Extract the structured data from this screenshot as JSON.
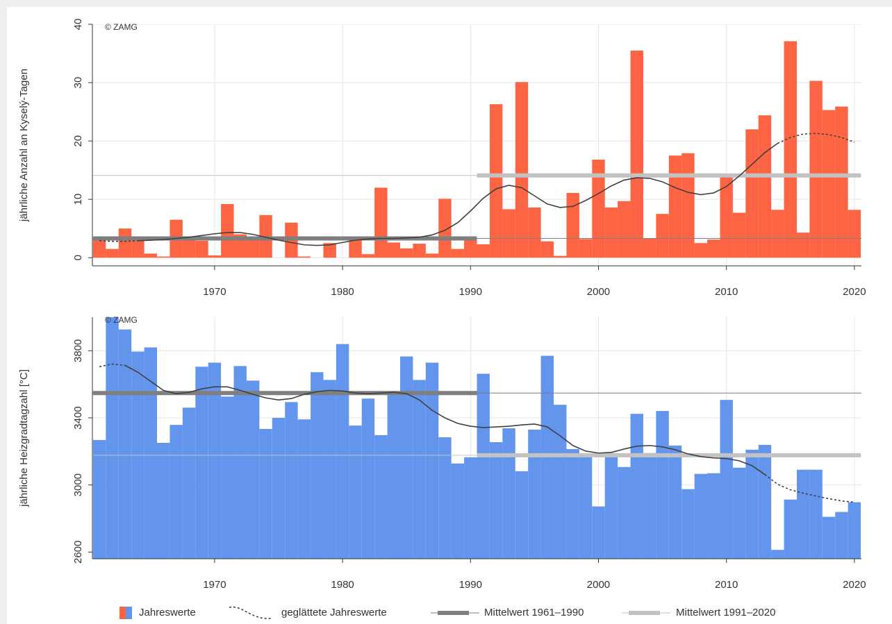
{
  "chart_data": [
    {
      "type": "bar",
      "annotation": "© ZAMG",
      "y_label": "jährliche Anzahl an Kyselý-Tagen",
      "x": [
        1961,
        1962,
        1963,
        1964,
        1965,
        1966,
        1967,
        1968,
        1969,
        1970,
        1971,
        1972,
        1973,
        1974,
        1975,
        1976,
        1977,
        1978,
        1979,
        1980,
        1981,
        1982,
        1983,
        1984,
        1985,
        1986,
        1987,
        1988,
        1989,
        1990,
        1991,
        1992,
        1993,
        1994,
        1995,
        1996,
        1997,
        1998,
        1999,
        2000,
        2001,
        2002,
        2003,
        2004,
        2005,
        2006,
        2007,
        2008,
        2009,
        2010,
        2011,
        2012,
        2013,
        2014,
        2015,
        2016,
        2017,
        2018,
        2019,
        2020
      ],
      "xlim": [
        1960.45,
        2020.55
      ],
      "xticks": [
        1970,
        1980,
        1990,
        2000,
        2010,
        2020
      ],
      "ylim": [
        -1.4,
        40
      ],
      "yticks": [
        0,
        10,
        20,
        30,
        40
      ],
      "grid": true,
      "series": [
        {
          "name": "Jahreswerte",
          "type": "bar",
          "color": "#fc6443",
          "values": [
            3.3,
            1.5,
            5,
            3,
            0.7,
            0.2,
            6.5,
            3.3,
            2.9,
            0.4,
            9.2,
            4,
            3.3,
            7.3,
            0,
            6,
            0.2,
            0,
            2.5,
            0,
            3,
            0.6,
            12,
            2.6,
            1.6,
            2.4,
            0.7,
            10.1,
            1.5,
            3.1,
            2.3,
            26.3,
            8.3,
            30.1,
            8.6,
            2.8,
            0.3,
            11.1,
            3.2,
            16.8,
            8.6,
            9.7,
            35.5,
            3.3,
            7.5,
            17.5,
            17.9,
            2.5,
            3.1,
            13.8,
            7.7,
            22,
            24.4,
            8.2,
            37.1,
            4.3,
            30.3,
            25.3,
            25.9,
            8.2
          ]
        },
        {
          "name": "geglättete Jahreswerte",
          "type": "line",
          "color": "#404040",
          "values": [
            2.9,
            2.8,
            2.8,
            2.9,
            3,
            3.1,
            3.3,
            3.5,
            3.8,
            4.1,
            4.3,
            4.3,
            4,
            3.5,
            3,
            2.6,
            2.2,
            2.1,
            2.2,
            2.6,
            3,
            3.2,
            3.3,
            3.3,
            3.4,
            3.5,
            3.9,
            4.7,
            6,
            8,
            10.2,
            11.8,
            12.4,
            12,
            10.6,
            9.2,
            8.6,
            8.8,
            9.8,
            11,
            12.3,
            13.3,
            13.7,
            13.6,
            13,
            12,
            11.2,
            10.8,
            11.1,
            12.2,
            14,
            16,
            18,
            19.6,
            20.6,
            21.2,
            21.3,
            21.1,
            20.6,
            19.8
          ]
        },
        {
          "name": "Mittelwert 1961–1990",
          "type": "hline",
          "color": "#7f7f7f",
          "value": 3.3,
          "xrange": [
            1961,
            1990
          ]
        },
        {
          "name": "Mittelwert 1991–2020",
          "type": "hline",
          "color": "#c2c2c2",
          "value": 14.1,
          "xrange": [
            1991,
            2020
          ]
        }
      ]
    },
    {
      "type": "bar",
      "annotation": "© ZAMG",
      "y_label": "jährliche Heizgradtagzahl [°C]",
      "x": [
        1961,
        1962,
        1963,
        1964,
        1965,
        1966,
        1967,
        1968,
        1969,
        1970,
        1971,
        1972,
        1973,
        1974,
        1975,
        1976,
        1977,
        1978,
        1979,
        1980,
        1981,
        1982,
        1983,
        1984,
        1985,
        1986,
        1987,
        1988,
        1989,
        1990,
        1991,
        1992,
        1993,
        1994,
        1995,
        1996,
        1997,
        1998,
        1999,
        2000,
        2001,
        2002,
        2003,
        2004,
        2005,
        2006,
        2007,
        2008,
        2009,
        2010,
        2011,
        2012,
        2013,
        2014,
        2015,
        2016,
        2017,
        2018,
        2019,
        2020
      ],
      "xlim": [
        1960.45,
        2020.55
      ],
      "xticks": [
        1970,
        1980,
        1990,
        2000,
        2010,
        2020
      ],
      "ylim": [
        2560,
        4000
      ],
      "yticks": [
        2600,
        3000,
        3400,
        3800
      ],
      "grid": true,
      "series": [
        {
          "type": "bar",
          "color": "#6495ed",
          "values": [
            3268,
            4000,
            3927,
            3795,
            3820,
            3251,
            3358,
            3461,
            3705,
            3729,
            3527,
            3709,
            3622,
            3334,
            3400,
            3494,
            3391,
            3672,
            3626,
            3840,
            3354,
            3515,
            3297,
            3560,
            3766,
            3626,
            3729,
            3284,
            3128,
            3165,
            3663,
            3255,
            3338,
            3082,
            3330,
            3770,
            3478,
            3214,
            3173,
            2872,
            3190,
            3107,
            3424,
            3190,
            3441,
            3235,
            2975,
            3066,
            3070,
            3507,
            3103,
            3210,
            3239,
            2613,
            2913,
            3091,
            3091,
            2810,
            2839,
            2897
          ]
        },
        {
          "type": "line",
          "color": "#404040",
          "values": [
            3705,
            3721,
            3713,
            3672,
            3618,
            3564,
            3544,
            3552,
            3573,
            3585,
            3585,
            3564,
            3540,
            3519,
            3507,
            3515,
            3540,
            3556,
            3564,
            3560,
            3548,
            3544,
            3548,
            3552,
            3544,
            3507,
            3445,
            3400,
            3367,
            3350,
            3342,
            3346,
            3350,
            3358,
            3363,
            3346,
            3293,
            3235,
            3202,
            3190,
            3194,
            3214,
            3231,
            3235,
            3227,
            3210,
            3185,
            3169,
            3161,
            3157,
            3144,
            3115,
            3062,
            3004,
            2971,
            2951,
            2934,
            2918,
            2905,
            2897
          ]
        },
        {
          "type": "hline",
          "color": "#7f7f7f",
          "value": 3548,
          "xrange": [
            1961,
            1990
          ]
        },
        {
          "type": "hline",
          "color": "#c2c2c2",
          "value": 3177,
          "xrange": [
            1991,
            2020
          ]
        }
      ]
    }
  ]
}
